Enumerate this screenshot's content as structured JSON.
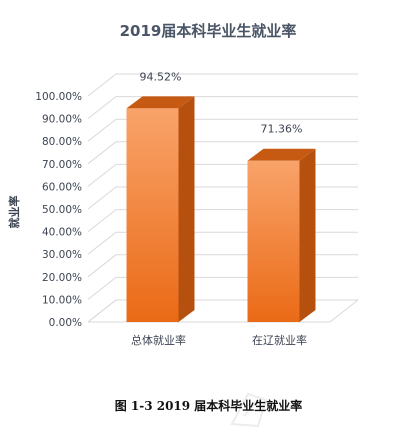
{
  "caption": "图 1-3   2019 届本科毕业生就业率",
  "chart_data": {
    "type": "bar",
    "title": "2019届本科毕业生就业率",
    "xlabel": "",
    "ylabel": "就业率",
    "categories": [
      "总体就业率",
      "在辽就业率"
    ],
    "values": [
      94.52,
      71.36
    ],
    "data_labels": [
      "94.52%",
      "71.36%"
    ],
    "ylim": [
      0,
      100
    ],
    "y_ticks": [
      "0.00%",
      "10.00%",
      "20.00%",
      "30.00%",
      "40.00%",
      "50.00%",
      "60.00%",
      "70.00%",
      "80.00%",
      "90.00%",
      "100.00%"
    ],
    "grid": true,
    "style": "3d-column",
    "colors": {
      "bar_front_top": "#f9a36a",
      "bar_front_bottom": "#ea6a16",
      "bar_side": "#b5500f",
      "bar_top": "#c65a12",
      "grid": "#d9d9d9",
      "title": "#4a5566"
    }
  }
}
